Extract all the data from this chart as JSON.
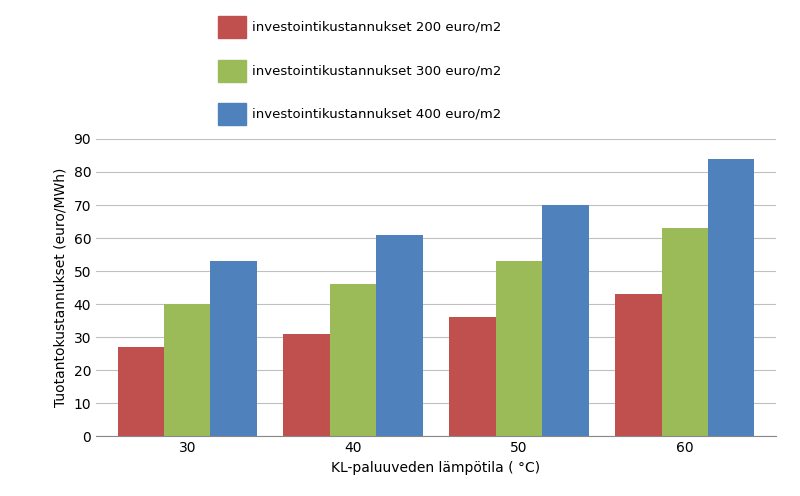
{
  "categories": [
    30,
    40,
    50,
    60
  ],
  "series": [
    {
      "label": "investointikustannukset 200 euro/m2",
      "values": [
        27,
        31,
        36,
        43
      ],
      "color": "#c0504d"
    },
    {
      "label": "investointikustannukset 300 euro/m2",
      "values": [
        40,
        46,
        53,
        63
      ],
      "color": "#9bbb59"
    },
    {
      "label": "investointikustannukset 400 euro/m2",
      "values": [
        53,
        61,
        70,
        84
      ],
      "color": "#4f81bd"
    }
  ],
  "xlabel": "KL-paluuveden lämpötila ( °C)",
  "ylabel": "Tuotantokustannukset (euro/MWh)",
  "ylim": [
    0,
    90
  ],
  "yticks": [
    0,
    10,
    20,
    30,
    40,
    50,
    60,
    70,
    80,
    90
  ],
  "xtick_labels": [
    "30",
    "40",
    "50",
    "60"
  ],
  "background_color": "#ffffff",
  "grid_color": "#c0c0c0",
  "bar_width": 0.28,
  "legend_fontsize": 9.5,
  "axis_fontsize": 10,
  "tick_fontsize": 10
}
